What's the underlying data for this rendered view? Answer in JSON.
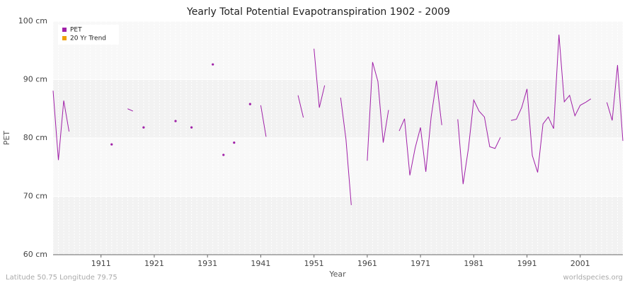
{
  "chart_data": {
    "type": "line",
    "title": "Yearly Total Potential Evapotranspiration 1902 - 2009",
    "xlabel": "Year",
    "ylabel": "PET",
    "footer_left": "Latitude 50.75 Longitude 79.75",
    "footer_right": "worldspecies.org",
    "x": [
      1902,
      1903,
      1904,
      1905,
      1906,
      1907,
      1908,
      1909,
      1910,
      1911,
      1912,
      1913,
      1914,
      1915,
      1916,
      1917,
      1918,
      1919,
      1920,
      1921,
      1922,
      1923,
      1924,
      1925,
      1926,
      1927,
      1928,
      1929,
      1930,
      1931,
      1932,
      1933,
      1934,
      1935,
      1936,
      1937,
      1938,
      1939,
      1940,
      1941,
      1942,
      1943,
      1944,
      1945,
      1946,
      1947,
      1948,
      1949,
      1950,
      1951,
      1952,
      1953,
      1954,
      1955,
      1956,
      1957,
      1958,
      1959,
      1960,
      1961,
      1962,
      1963,
      1964,
      1965,
      1966,
      1967,
      1968,
      1969,
      1970,
      1971,
      1972,
      1973,
      1974,
      1975,
      1976,
      1977,
      1978,
      1979,
      1980,
      1981,
      1982,
      1983,
      1984,
      1985,
      1986,
      1987,
      1988,
      1989,
      1990,
      1991,
      1992,
      1993,
      1994,
      1995,
      1996,
      1997,
      1998,
      1999,
      2000,
      2001,
      2002,
      2003,
      2004,
      2005,
      2006,
      2007,
      2008,
      2009
    ],
    "series": [
      {
        "name": "PET",
        "color": "#a020a8",
        "values": [
          88.1,
          76.2,
          86.4,
          81.1,
          null,
          null,
          null,
          null,
          null,
          null,
          null,
          78.9,
          null,
          null,
          85.0,
          84.6,
          null,
          81.8,
          null,
          null,
          null,
          null,
          null,
          82.9,
          null,
          null,
          81.8,
          null,
          null,
          null,
          92.6,
          null,
          77.1,
          null,
          79.2,
          null,
          null,
          85.8,
          null,
          85.6,
          80.2,
          null,
          null,
          null,
          null,
          null,
          87.3,
          83.5,
          null,
          95.3,
          85.2,
          89.0,
          null,
          null,
          86.9,
          79.8,
          68.5,
          null,
          null,
          76.1,
          93.0,
          89.7,
          79.2,
          84.8,
          null,
          81.2,
          83.3,
          73.6,
          78.3,
          81.8,
          74.2,
          83.6,
          89.8,
          82.2,
          null,
          null,
          83.2,
          72.1,
          78.2,
          86.5,
          84.6,
          83.6,
          78.5,
          78.2,
          80.1,
          null,
          83.0,
          83.2,
          85.2,
          88.4,
          77.0,
          74.1,
          82.4,
          83.6,
          81.6,
          97.7,
          86.2,
          87.3,
          83.8,
          85.6,
          86.1,
          86.7,
          null,
          null,
          86.1,
          83.0,
          92.5,
          79.5
        ]
      },
      {
        "name": "20 Yr Trend",
        "color": "#f0a000"
      }
    ],
    "xlim": [
      1902,
      2009
    ],
    "xticks": [
      1911,
      1921,
      1931,
      1941,
      1951,
      1961,
      1971,
      1981,
      1991,
      2001
    ],
    "ylim": [
      60,
      100
    ],
    "yticks": [
      {
        "value": 60,
        "label": "60 cm"
      },
      {
        "value": 70,
        "label": "70 cm"
      },
      {
        "value": 80,
        "label": "80 cm"
      },
      {
        "value": 90,
        "label": "90 cm"
      },
      {
        "value": 100,
        "label": "100 cm"
      }
    ],
    "grid": true,
    "legend": "upper left"
  }
}
